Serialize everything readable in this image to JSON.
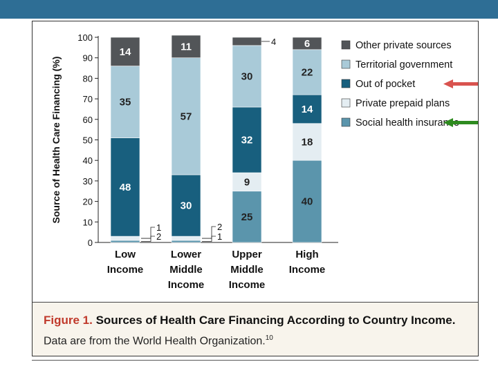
{
  "caption": {
    "label": "Figure 1.",
    "title": "Sources of Health Care Financing According to Country Income.",
    "subtitle": "Data are from the World Health Organization.",
    "ref": "10"
  },
  "chart_data": {
    "type": "bar",
    "stacked": true,
    "ylabel": "Source of Health Care Financing (%)",
    "ylim": [
      0,
      100
    ],
    "yticks": [
      "0",
      "10",
      "20",
      "30",
      "40",
      "50",
      "60",
      "70",
      "80",
      "90",
      "100"
    ],
    "categories": [
      [
        "Low",
        "Income"
      ],
      [
        "Lower",
        "Middle",
        "Income"
      ],
      [
        "Upper",
        "Middle",
        "Income"
      ],
      [
        "High",
        "Income"
      ]
    ],
    "series": [
      {
        "name": "Social health insurance",
        "color": "#5b95ac",
        "values": [
          1,
          1,
          25,
          40
        ],
        "labels": [
          "1",
          "1",
          "25",
          "40"
        ]
      },
      {
        "name": "Private prepaid plans",
        "color": "#e4edf2",
        "values": [
          2,
          2,
          9,
          18
        ],
        "labels": [
          "2",
          "2",
          "9",
          "18"
        ]
      },
      {
        "name": "Out of pocket",
        "color": "#185f7e",
        "values": [
          48,
          30,
          32,
          14
        ],
        "labels": [
          "48",
          "30",
          "32",
          "14"
        ]
      },
      {
        "name": "Territorial government",
        "color": "#a9cad8",
        "values": [
          35,
          57,
          30,
          22
        ],
        "labels": [
          "35",
          "57",
          "30",
          "22"
        ]
      },
      {
        "name": "Other private sources",
        "color": "#525558",
        "values": [
          14,
          11,
          4,
          6
        ],
        "labels": [
          "14",
          "11",
          "4",
          "6"
        ]
      }
    ],
    "legend_order": [
      "Other private sources",
      "Territorial government",
      "Out of pocket",
      "Private prepaid plans",
      "Social health insurance"
    ],
    "legend_position": "top-right",
    "annotations": [
      {
        "type": "arrow",
        "color": "#d9534f",
        "target": "Out of pocket"
      },
      {
        "type": "arrow",
        "color": "#2e8b1f",
        "target": "Social health insurance"
      }
    ]
  }
}
